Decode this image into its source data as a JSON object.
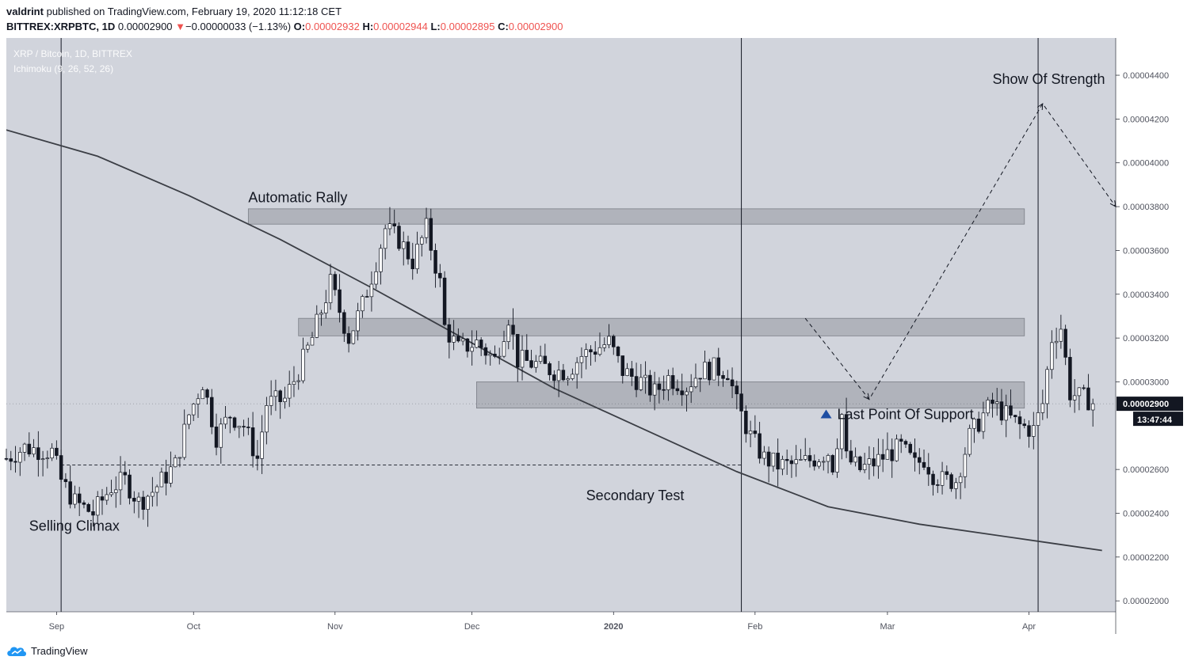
{
  "header": {
    "published_by": "valdrint",
    "published_text": "published on TradingView.com, February 19, 2020 11:12:18 CET",
    "symbol": "BITTREX:XRPBTC, 1D",
    "last": "0.00002900",
    "down_arrow": "▼",
    "change": "−0.00000033 (−1.13%)",
    "o_label": "O:",
    "o_value": "0.00002932",
    "h_label": "H:",
    "h_value": "0.00002944",
    "l_label": "L:",
    "l_value": "0.00002895",
    "c_label": "C:",
    "c_value": "0.00002900"
  },
  "legend": {
    "line1": "XRP / Bitcoin, 1D, BITTREX",
    "line2": "Ichimoku (9, 26, 52, 26)"
  },
  "footer": {
    "brand": "TradingView"
  },
  "colors": {
    "plot_bg": "#d1d4dc",
    "candle_up": "#ffffff",
    "candle_down": "#131722",
    "wick": "#131722",
    "zone": "#9598a1"
  },
  "chart_data": {
    "type": "candlestick",
    "date_range": [
      "2019-08-21",
      "2020-04-20"
    ],
    "y_range": [
      1.95e-05,
      4.57e-05
    ],
    "price_ticks": [
      "0.00004400",
      "0.00004200",
      "0.00004000",
      "0.00003800",
      "0.00003600",
      "0.00003400",
      "0.00003200",
      "0.00003000",
      "0.00002600",
      "0.00002400",
      "0.00002200",
      "0.00002000"
    ],
    "price_tick_values": [
      4.4e-05,
      4.2e-05,
      4e-05,
      3.8e-05,
      3.6e-05,
      3.4e-05,
      3.2e-05,
      3e-05,
      2.6e-05,
      2.4e-05,
      2.2e-05,
      2e-05
    ],
    "time_ticks": [
      {
        "label": "Sep",
        "date": "2019-09-01"
      },
      {
        "label": "Oct",
        "date": "2019-10-01"
      },
      {
        "label": "Nov",
        "date": "2019-11-01"
      },
      {
        "label": "Dec",
        "date": "2019-12-01"
      },
      {
        "label": "2020",
        "date": "2020-01-01",
        "bold": true
      },
      {
        "label": "Feb",
        "date": "2020-02-01"
      },
      {
        "label": "Mar",
        "date": "2020-03-01"
      },
      {
        "label": "Apr",
        "date": "2020-04-01"
      }
    ],
    "last_price_label": "0.00002900",
    "countdown_label": "13:47:44",
    "last_price": 2.9e-05,
    "candle_start": "2019-08-21",
    "close_path": [
      [
        0,
        2.65e-05
      ],
      [
        4,
        2.7e-05
      ],
      [
        10,
        2.68e-05
      ],
      [
        12,
        2.55e-05
      ],
      [
        15,
        2.45e-05
      ],
      [
        19,
        2.4e-05
      ],
      [
        23,
        2.52e-05
      ],
      [
        26,
        2.55e-05
      ],
      [
        29,
        2.45e-05
      ],
      [
        32,
        2.5e-05
      ],
      [
        37,
        2.62e-05
      ],
      [
        40,
        2.85e-05
      ],
      [
        43,
        3e-05
      ],
      [
        46,
        2.75e-05
      ],
      [
        49,
        2.85e-05
      ],
      [
        52,
        2.8e-05
      ],
      [
        55,
        2.65e-05
      ],
      [
        57,
        2.9e-05
      ],
      [
        61,
        2.92e-05
      ],
      [
        64,
        3.05e-05
      ],
      [
        67,
        3.2e-05
      ],
      [
        71,
        3.45e-05
      ],
      [
        75,
        3.2e-05
      ],
      [
        78,
        3.35e-05
      ],
      [
        81,
        3.55e-05
      ],
      [
        83,
        3.7e-05
      ],
      [
        86,
        3.65e-05
      ],
      [
        89,
        3.55e-05
      ],
      [
        92,
        3.7e-05
      ],
      [
        95,
        3.45e-05
      ],
      [
        96,
        3.25e-05
      ],
      [
        99,
        3.15e-05
      ],
      [
        103,
        3.18e-05
      ],
      [
        107,
        3.1e-05
      ],
      [
        110,
        3.3e-05
      ],
      [
        112,
        3.1e-05
      ],
      [
        116,
        3.08e-05
      ],
      [
        120,
        3.05e-05
      ],
      [
        123,
        3.05e-05
      ],
      [
        126,
        3.12e-05
      ],
      [
        129,
        3.15e-05
      ],
      [
        132,
        3.18e-05
      ],
      [
        135,
        3.05e-05
      ],
      [
        139,
        3e-05
      ],
      [
        142,
        2.95e-05
      ],
      [
        145,
        3.02e-05
      ],
      [
        149,
        2.98e-05
      ],
      [
        152,
        3.05e-05
      ],
      [
        155,
        3.06e-05
      ],
      [
        158,
        3.05e-05
      ],
      [
        160,
        2.9e-05
      ],
      [
        163,
        2.75e-05
      ],
      [
        166,
        2.65e-05
      ],
      [
        169,
        2.62e-05
      ],
      [
        173,
        2.62e-05
      ],
      [
        177,
        2.65e-05
      ],
      [
        180,
        2.68e-05
      ],
      [
        181,
        2.62e-05
      ],
      [
        183,
        2.85e-05
      ],
      [
        184,
        2.65e-05
      ],
      [
        187,
        2.6e-05
      ],
      [
        190,
        2.63e-05
      ],
      [
        193,
        2.67e-05
      ],
      [
        196,
        2.7e-05
      ],
      [
        199,
        2.62e-05
      ],
      [
        201,
        2.65e-05
      ],
      [
        203,
        2.58e-05
      ],
      [
        205,
        2.55e-05
      ],
      [
        208,
        2.55e-05
      ],
      [
        211,
        2.75e-05
      ],
      [
        214,
        2.85e-05
      ],
      [
        216,
        2.9e-05
      ],
      [
        220,
        2.83e-05
      ],
      [
        222,
        2.8e-05
      ],
      [
        225,
        2.78e-05
      ],
      [
        227,
        2.9e-05
      ],
      [
        229,
        3.2e-05
      ],
      [
        231,
        3.25e-05
      ],
      [
        233,
        2.95e-05
      ],
      [
        235,
        2.93e-05
      ],
      [
        237,
        2.92e-05
      ],
      [
        238,
        2.9e-05
      ]
    ],
    "ema_path": [
      [
        -40,
        4.5e-05
      ],
      [
        0,
        4.15e-05
      ],
      [
        20,
        4.03e-05
      ],
      [
        40,
        3.85e-05
      ],
      [
        60,
        3.65e-05
      ],
      [
        80,
        3.43e-05
      ],
      [
        100,
        3.2e-05
      ],
      [
        120,
        2.97e-05
      ],
      [
        140,
        2.78e-05
      ],
      [
        160,
        2.59e-05
      ],
      [
        180,
        2.43e-05
      ],
      [
        200,
        2.35e-05
      ],
      [
        220,
        2.29e-05
      ],
      [
        230,
        2.26e-05
      ],
      [
        240,
        2.23e-05
      ]
    ],
    "zones": [
      {
        "start": "2019-10-13",
        "end": "2020-03-31",
        "low": 3.72e-05,
        "high": 3.79e-05
      },
      {
        "start": "2019-10-24",
        "end": "2020-03-31",
        "low": 3.21e-05,
        "high": 3.29e-05
      },
      {
        "start": "2019-12-02",
        "end": "2020-03-31",
        "low": 2.88e-05,
        "high": 3e-05
      }
    ],
    "vertical_lines": [
      "2019-09-02",
      "2020-01-29",
      "2020-04-03"
    ],
    "support_level": {
      "start": "2019-09-02",
      "end": "2020-01-29",
      "value": 2.62e-05
    },
    "projection": [
      [
        "2020-02-12",
        3.29e-05
      ],
      [
        "2020-02-26",
        2.92e-05
      ],
      [
        "2020-04-04",
        4.27e-05
      ],
      [
        "2020-04-20",
        3.8e-05
      ]
    ],
    "annotations": [
      {
        "text": "Automatic Rally",
        "date": "2019-10-13",
        "price": 3.82e-05,
        "anchor": "start"
      },
      {
        "text": "Selling Climax",
        "date": "2019-08-26",
        "price": 2.32e-05,
        "anchor": "start"
      },
      {
        "text": "Secondary Test",
        "date": "2019-12-26",
        "price": 2.46e-05,
        "anchor": "start"
      },
      {
        "text": "Last Point Of Support",
        "date": "2020-02-19",
        "price": 2.83e-05,
        "anchor": "start"
      },
      {
        "text": "Show Of Strength",
        "date": "2020-03-24",
        "price": 4.36e-05,
        "anchor": "start"
      }
    ]
  }
}
